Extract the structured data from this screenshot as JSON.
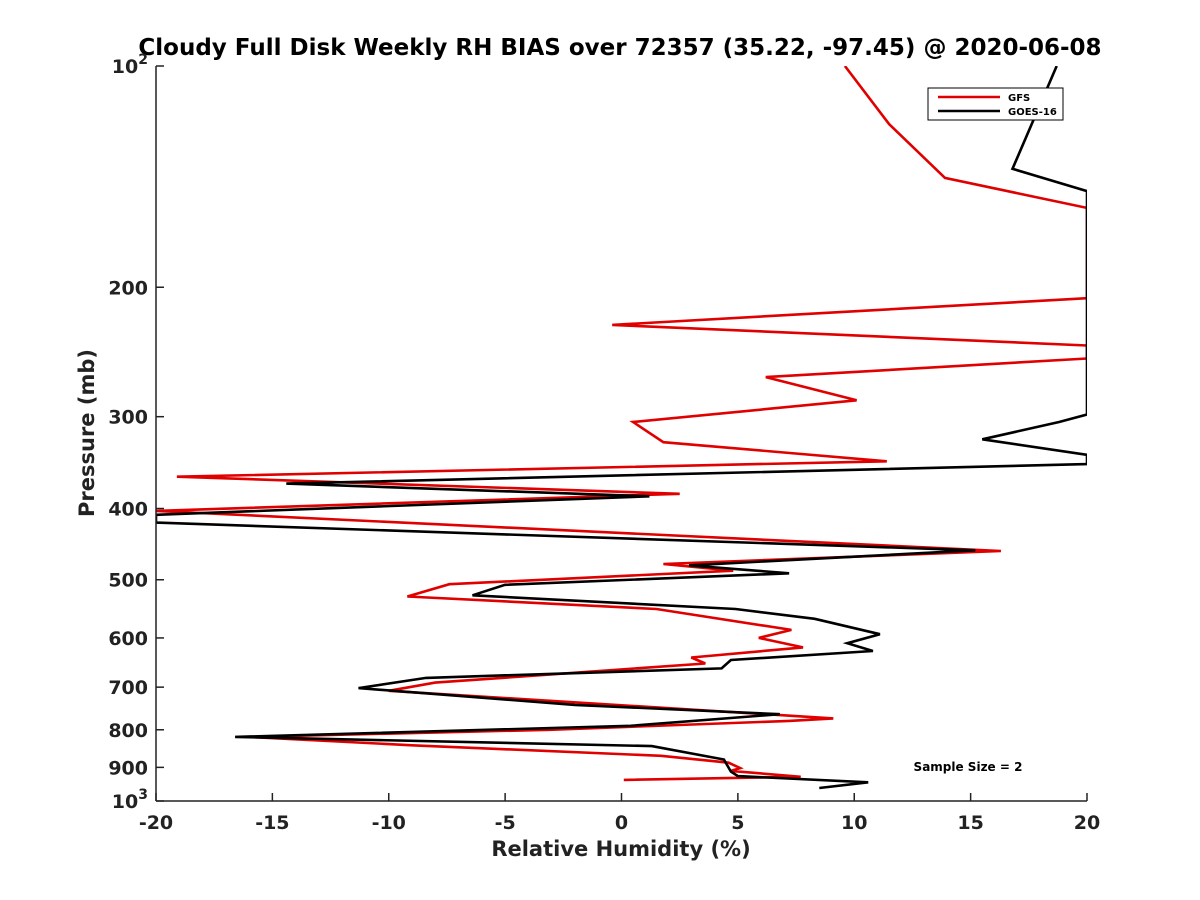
{
  "chart_data": {
    "type": "line",
    "title": "Cloudy Full Disk Weekly RH BIAS over 72357 (35.22, -97.45) @ 2020-06-08",
    "xlabel": "Relative Humidity (%)",
    "ylabel": "Pressure (mb)",
    "xlim": [
      -20,
      20
    ],
    "ylim": [
      100,
      1000
    ],
    "yscale": "log",
    "y_reversed": true,
    "grid": false,
    "legend_position": "top-right",
    "x_ticks": [
      "-20",
      "-15",
      "-10",
      "-5",
      "0",
      "5",
      "10",
      "15",
      "20"
    ],
    "y_ticks": [
      {
        "value": 100,
        "base": "10",
        "exp": "2",
        "label": ""
      },
      {
        "value": 200,
        "label": "200"
      },
      {
        "value": 300,
        "label": "300"
      },
      {
        "value": 400,
        "label": "400"
      },
      {
        "value": 500,
        "label": "500"
      },
      {
        "value": 600,
        "label": "600"
      },
      {
        "value": 700,
        "label": "700"
      },
      {
        "value": 800,
        "label": "800"
      },
      {
        "value": 900,
        "label": "900"
      },
      {
        "value": 1000,
        "base": "10",
        "exp": "3",
        "label": ""
      }
    ],
    "series": [
      {
        "name": "GFS",
        "color": "#e00000",
        "points": [
          [
            9.6,
            100
          ],
          [
            11.5,
            120
          ],
          [
            13.9,
            142
          ],
          [
            20,
            156
          ],
          [
            20,
            207
          ],
          [
            -0.4,
            225
          ],
          [
            20,
            240
          ],
          [
            20,
            250
          ],
          [
            6.2,
            265
          ],
          [
            10.1,
            285
          ],
          [
            0.5,
            305
          ],
          [
            1.8,
            325
          ],
          [
            11.4,
            345
          ],
          [
            -19.1,
            362
          ],
          [
            2.5,
            382
          ],
          [
            -20,
            403
          ],
          [
            16.3,
            457
          ],
          [
            1.8,
            476
          ],
          [
            4.8,
            486
          ],
          [
            -7.4,
            507
          ],
          [
            -9.2,
            527
          ],
          [
            1.5,
            548
          ],
          [
            7.3,
            585
          ],
          [
            5.9,
            600
          ],
          [
            7.8,
            618
          ],
          [
            3.0,
            638
          ],
          [
            3.6,
            650
          ],
          [
            -8.0,
            690
          ],
          [
            -10.0,
            708
          ],
          [
            9.1,
            772
          ],
          [
            7.2,
            778
          ],
          [
            -3.1,
            800
          ],
          [
            -16.0,
            818
          ],
          [
            -9.0,
            840
          ],
          [
            1.7,
            868
          ],
          [
            4.6,
            887
          ],
          [
            5.1,
            902
          ],
          [
            4.7,
            910
          ],
          [
            7.7,
            927
          ],
          [
            0.1,
            936
          ]
        ]
      },
      {
        "name": "GOES-16",
        "color": "#000000",
        "points": [
          [
            18.7,
            100
          ],
          [
            16.8,
            138
          ],
          [
            20,
            148
          ],
          [
            20,
            298
          ],
          [
            18.8,
            305
          ],
          [
            15.5,
            322
          ],
          [
            20,
            338
          ],
          [
            20,
            348
          ],
          [
            -14.4,
            370
          ],
          [
            1.2,
            385
          ],
          [
            -20,
            408
          ],
          [
            -20,
            418
          ],
          [
            15.2,
            456
          ],
          [
            2.9,
            478
          ],
          [
            7.2,
            490
          ],
          [
            -5.0,
            508
          ],
          [
            -6.4,
            525
          ],
          [
            4.9,
            548
          ],
          [
            8.3,
            565
          ],
          [
            11.1,
            593
          ],
          [
            9.7,
            610
          ],
          [
            10.8,
            625
          ],
          [
            4.7,
            643
          ],
          [
            4.3,
            660
          ],
          [
            -8.4,
            680
          ],
          [
            -11.3,
            702
          ],
          [
            -2.0,
            740
          ],
          [
            6.8,
            762
          ],
          [
            0.4,
            790
          ],
          [
            -16.6,
            818
          ],
          [
            1.3,
            842
          ],
          [
            4.4,
            878
          ],
          [
            4.7,
            912
          ],
          [
            5.0,
            925
          ],
          [
            10.6,
            943
          ],
          [
            8.5,
            960
          ]
        ]
      }
    ],
    "annotation": "Sample Size = 2"
  }
}
